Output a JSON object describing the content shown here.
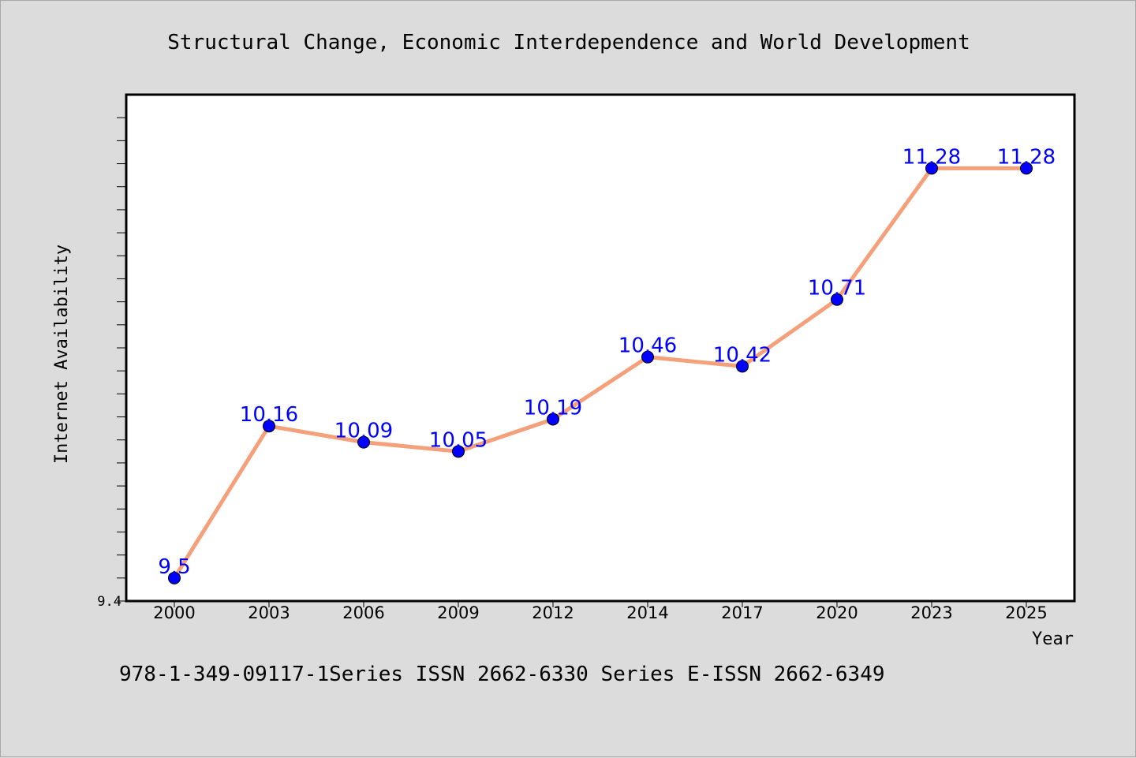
{
  "chart_data": {
    "type": "line",
    "title": "Structural Change, Economic Interdependence and World Development",
    "xlabel": "Year",
    "ylabel": "Internet Availability",
    "categories": [
      "2000",
      "2003",
      "2006",
      "2009",
      "2012",
      "2014",
      "2017",
      "2020",
      "2023",
      "2025"
    ],
    "series": [
      {
        "values": [
          9.5,
          10.16,
          10.09,
          10.05,
          10.19,
          10.46,
          10.42,
          10.71,
          11.28,
          11.28
        ],
        "data_labels": [
          "9.5",
          "10.16",
          "10.09",
          "10.05",
          "10.19",
          "10.46",
          "10.42",
          "10.71",
          "11.28",
          "11.28"
        ],
        "line_color": "#f4a07a",
        "marker_color": "#0000ff"
      }
    ],
    "ylim": [
      9.4,
      11.6
    ],
    "ytick_labels": [
      "9.4"
    ],
    "grid": false,
    "legend": "none"
  },
  "footer": "978-1-349-09117-1Series ISSN 2662-6330 Series E-ISSN 2662-6349"
}
